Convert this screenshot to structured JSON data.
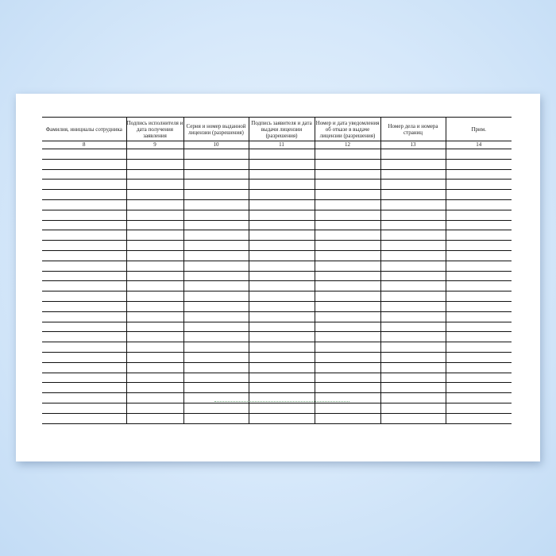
{
  "table": {
    "headers": [
      "Фамилия, инициалы сотрудника",
      "Подпись исполнителя и дата получения заявления",
      "Серия и номер выданной лицензии (разрешения)",
      "Подпись заявителя и дата выдачи лицензии (разрешения)",
      "Номер и дата уведомления об отказе в выдаче лицензии (разрешения)",
      "Номер дела и номера страниц",
      "Прим."
    ],
    "column_numbers": [
      "8",
      "9",
      "10",
      "11",
      "12",
      "13",
      "14"
    ],
    "empty_rows": 27
  }
}
